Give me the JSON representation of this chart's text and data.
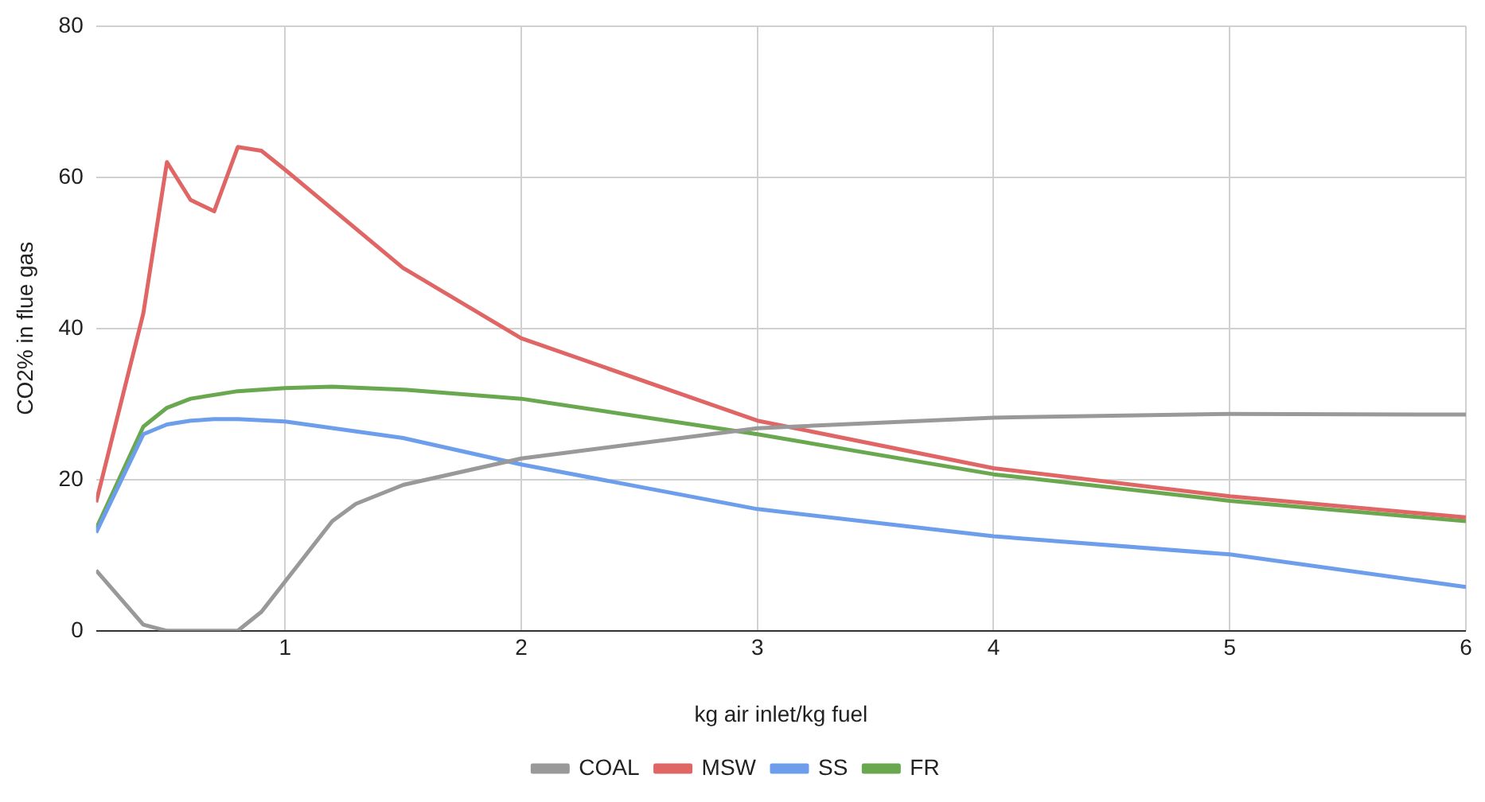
{
  "chart_data": {
    "type": "line",
    "xlabel": "kg air inlet/kg fuel",
    "ylabel": "CO2% in flue gas",
    "xlim": [
      0.2,
      6
    ],
    "xticks": [
      1,
      2,
      3,
      4,
      5,
      6
    ],
    "ylim": [
      0,
      80
    ],
    "yticks": [
      0,
      20,
      40,
      60,
      80
    ],
    "grid": true,
    "legend": "bottom",
    "marker": "none",
    "series": [
      {
        "name": "COAL",
        "color": "#999999",
        "x": [
          0.2,
          0.4,
          0.5,
          0.6,
          0.7,
          0.8,
          0.9,
          1,
          1.2,
          1.3,
          1.5,
          2,
          3,
          4,
          5,
          6
        ],
        "values": [
          8,
          0.8,
          0,
          0,
          0,
          0,
          2.5,
          6.5,
          14.5,
          16.8,
          19.3,
          22.8,
          26.8,
          28.2,
          28.7,
          28.6
        ]
      },
      {
        "name": "MSW",
        "color": "#e06666",
        "x": [
          0.2,
          0.4,
          0.5,
          0.6,
          0.7,
          0.8,
          0.9,
          1,
          1.5,
          2,
          3,
          4,
          5,
          6
        ],
        "values": [
          17,
          42,
          62,
          57,
          55.5,
          64,
          63.5,
          61,
          48,
          38.7,
          27.8,
          21.5,
          17.8,
          15
        ]
      },
      {
        "name": "SS",
        "color": "#6d9eeb",
        "x": [
          0.2,
          0.4,
          0.5,
          0.6,
          0.7,
          0.8,
          1,
          1.5,
          2,
          3,
          4,
          5,
          6
        ],
        "values": [
          13,
          26,
          27.3,
          27.8,
          28,
          28,
          27.7,
          25.5,
          22,
          16.1,
          12.5,
          10.1,
          5.8
        ]
      },
      {
        "name": "FR",
        "color": "#6aa84f",
        "x": [
          0.2,
          0.4,
          0.5,
          0.6,
          0.8,
          1,
          1.2,
          1.5,
          2,
          3,
          4,
          5,
          6
        ],
        "values": [
          13.5,
          27,
          29.5,
          30.7,
          31.7,
          32.1,
          32.3,
          31.9,
          30.7,
          26,
          20.7,
          17.2,
          14.5
        ]
      }
    ]
  }
}
